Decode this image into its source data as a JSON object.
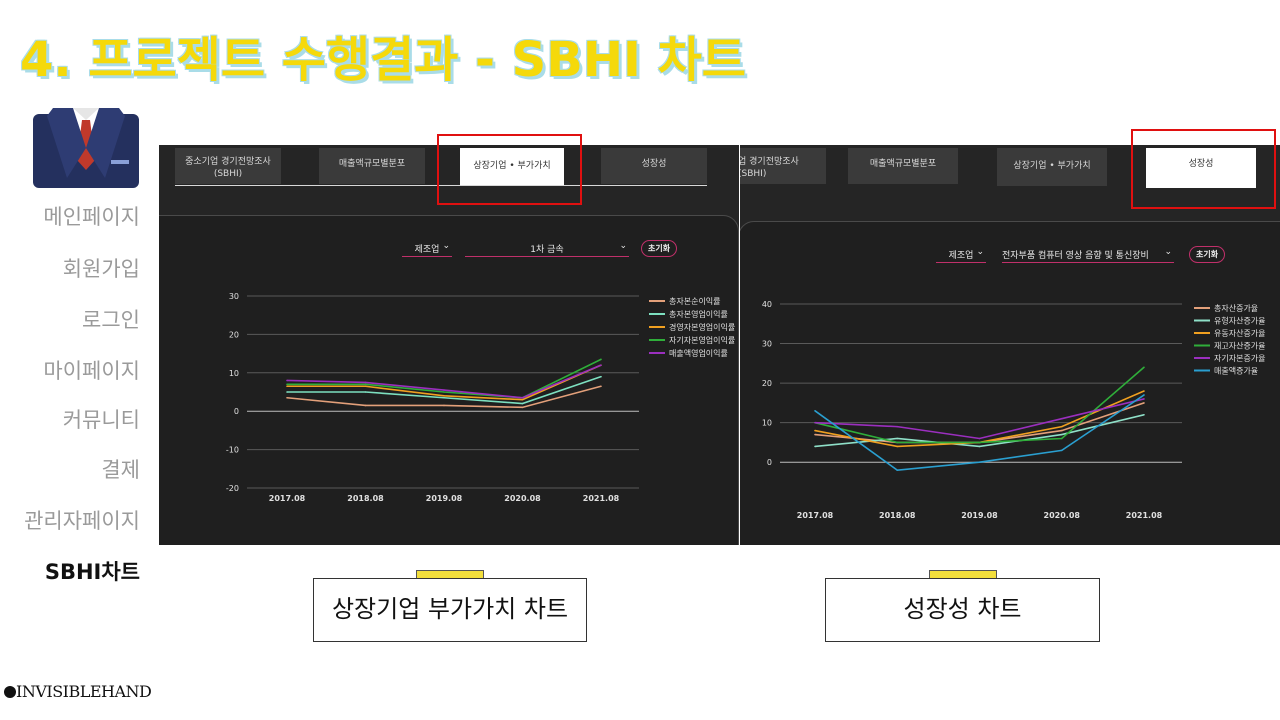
{
  "slide": {
    "title": "4. 프로젝트 수행결과 - SBHI 차트"
  },
  "nav": {
    "items": [
      "메인페이지",
      "회원가입",
      "로그인",
      "마이페이지",
      "커뮤니티",
      "결제",
      "관리자페이지",
      "SBHI차트"
    ],
    "active": "SBHI차트"
  },
  "left_screen": {
    "tabs": [
      "중소기업 경기전망조사\n(SBHI)",
      "매출액규모별분포",
      "상장기업 • 부가가치",
      "성장성"
    ],
    "active_tab": "상장기업 • 부가가치",
    "filter_industry": "제조업",
    "filter_sub": "1차 금속",
    "reset_label": "초기화"
  },
  "right_screen": {
    "tabs": [
      "업 경기전망조사\n(SBHI)",
      "매출액규모별분포",
      "상장기업 • 부가가치",
      "성장성"
    ],
    "active_tab": "성장성",
    "filter_industry": "제조업",
    "filter_sub": "전자부품 컴퓨터 영상 음향 및 통신장비",
    "reset_label": "초기화"
  },
  "captions": {
    "left": "상장기업 부가가치 차트",
    "right": "성장성 차트"
  },
  "logo": "INVISIBLEHAND",
  "colors": {
    "title_yellow": "#f5d90a",
    "title_outline": "#a9dce8",
    "accent_pink": "#c0306a",
    "highlight_red": "#e01010"
  },
  "chart_data": [
    {
      "type": "line",
      "categories": [
        "2017.08",
        "2018.08",
        "2019.08",
        "2020.08",
        "2021.08"
      ],
      "ylim": [
        -20,
        30
      ],
      "yticks": [
        30,
        20,
        10,
        0,
        -10,
        -20
      ],
      "grid": true,
      "legend": "right",
      "series": [
        {
          "name": "총자본순이익률",
          "color": "#e3a07a",
          "values": [
            3.5,
            1.5,
            1.5,
            1,
            6.5
          ]
        },
        {
          "name": "총자본영업이익률",
          "color": "#7de0c0",
          "values": [
            5,
            5,
            3.5,
            2,
            9
          ]
        },
        {
          "name": "경영자본영업이익률",
          "color": "#f0a020",
          "values": [
            6.5,
            6.5,
            4,
            3,
            12
          ]
        },
        {
          "name": "자기자본영업이익률",
          "color": "#2fae3a",
          "values": [
            7,
            7,
            5,
            3.5,
            13.5
          ]
        },
        {
          "name": "매출액영업이익률",
          "color": "#9b2fbf",
          "values": [
            8,
            7.5,
            5.5,
            3.5,
            12
          ]
        }
      ]
    },
    {
      "type": "line",
      "categories": [
        "2017.08",
        "2018.08",
        "2019.08",
        "2020.08",
        "2021.08"
      ],
      "ylim": [
        -5,
        40
      ],
      "yticks": [
        40,
        30,
        20,
        10,
        0
      ],
      "grid": true,
      "legend": "right",
      "series": [
        {
          "name": "총자산증가율",
          "color": "#e3a07a",
          "values": [
            7,
            5,
            5,
            8,
            15
          ]
        },
        {
          "name": "유형자산증가율",
          "color": "#8fe0c8",
          "values": [
            4,
            6,
            4,
            7,
            12
          ]
        },
        {
          "name": "유동자산증가율",
          "color": "#f0a020",
          "values": [
            8,
            4,
            5,
            9,
            18
          ]
        },
        {
          "name": "재고자산증가율",
          "color": "#2fae3a",
          "values": [
            10,
            5,
            5,
            6,
            24
          ]
        },
        {
          "name": "자기자본증가율",
          "color": "#9b2fbf",
          "values": [
            10,
            9,
            6,
            11,
            16
          ]
        },
        {
          "name": "매출액증가율",
          "color": "#2a9fd0",
          "values": [
            13,
            -2,
            0,
            3,
            17
          ]
        }
      ]
    }
  ]
}
